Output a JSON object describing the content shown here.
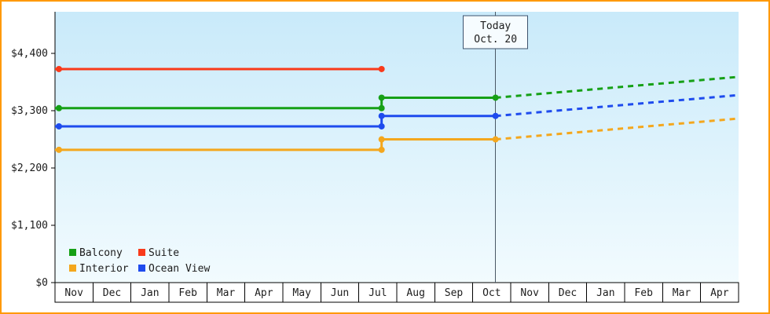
{
  "colors": {
    "frame_border": "#ff9900",
    "page_background": "#ffffff",
    "plot_gradient_top": "#c9eafa",
    "plot_gradient_bottom": "#f2fbfe",
    "axis": "#000000",
    "text": "#1c1c1c",
    "today_line": "#4a5866",
    "today_box_fill": "#f6fcff",
    "today_box_border": "#3d536e",
    "month_cell_fill": "#ffffff",
    "month_cell_border": "#000000"
  },
  "chart_data": {
    "type": "line",
    "x_axis": {
      "months": [
        "Nov",
        "Dec",
        "Jan",
        "Feb",
        "Mar",
        "Apr",
        "May",
        "Jun",
        "Jul",
        "Aug",
        "Sep",
        "Oct",
        "Nov",
        "Dec",
        "Jan",
        "Feb",
        "Mar",
        "Apr"
      ]
    },
    "y_axis": {
      "max": 5200,
      "ticks": [
        {
          "value": 0,
          "label": "$0"
        },
        {
          "value": 1100,
          "label": "$1,100"
        },
        {
          "value": 2200,
          "label": "$2,200"
        },
        {
          "value": 3300,
          "label": "$3,300"
        },
        {
          "value": 4400,
          "label": "$4,400"
        }
      ]
    },
    "today": {
      "lines": [
        "Today",
        "Oct. 20"
      ],
      "x": 11.6
    },
    "series": [
      {
        "name": "Suite",
        "color": "#f93a1b",
        "solid": [
          [
            0,
            4100
          ],
          [
            8.6,
            4100
          ]
        ],
        "dashed": [],
        "markers": [
          [
            0,
            4100
          ],
          [
            8.6,
            4100
          ]
        ]
      },
      {
        "name": "Balcony",
        "color": "#16a016",
        "solid": [
          [
            0,
            3350
          ],
          [
            8.6,
            3350
          ],
          [
            8.6,
            3550
          ],
          [
            11.6,
            3550
          ]
        ],
        "dashed": [
          [
            11.6,
            3550
          ],
          [
            18,
            3950
          ]
        ],
        "markers": [
          [
            0,
            3350
          ],
          [
            8.6,
            3350
          ],
          [
            8.6,
            3550
          ],
          [
            11.6,
            3550
          ]
        ]
      },
      {
        "name": "Ocean View",
        "color": "#1e4bee",
        "solid": [
          [
            0,
            3000
          ],
          [
            8.6,
            3000
          ],
          [
            8.6,
            3200
          ],
          [
            11.6,
            3200
          ]
        ],
        "dashed": [
          [
            11.6,
            3200
          ],
          [
            18,
            3600
          ]
        ],
        "markers": [
          [
            0,
            3000
          ],
          [
            8.6,
            3000
          ],
          [
            8.6,
            3200
          ],
          [
            11.6,
            3200
          ]
        ]
      },
      {
        "name": "Interior",
        "color": "#f4a71d",
        "solid": [
          [
            0,
            2550
          ],
          [
            8.6,
            2550
          ],
          [
            8.6,
            2750
          ],
          [
            11.6,
            2750
          ]
        ],
        "dashed": [
          [
            11.6,
            2750
          ],
          [
            18,
            3150
          ]
        ],
        "markers": [
          [
            0,
            2550
          ],
          [
            8.6,
            2550
          ],
          [
            8.6,
            2750
          ],
          [
            11.6,
            2750
          ]
        ]
      }
    ],
    "legend": {
      "position": "bottom-left",
      "items": [
        {
          "label": "Balcony",
          "color": "#16a016"
        },
        {
          "label": "Suite",
          "color": "#f93a1b"
        },
        {
          "label": "Interior",
          "color": "#f4a71d"
        },
        {
          "label": "Ocean View",
          "color": "#1e4bee"
        }
      ]
    }
  }
}
